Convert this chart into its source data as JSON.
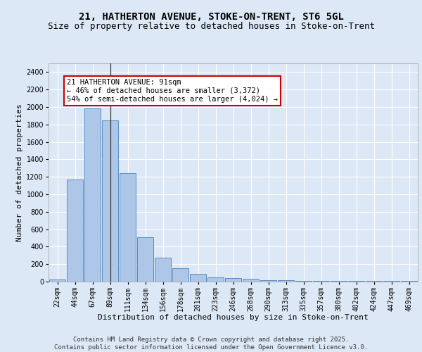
{
  "title_line1": "21, HATHERTON AVENUE, STOKE-ON-TRENT, ST6 5GL",
  "title_line2": "Size of property relative to detached houses in Stoke-on-Trent",
  "xlabel": "Distribution of detached houses by size in Stoke-on-Trent",
  "ylabel": "Number of detached properties",
  "categories": [
    "22sqm",
    "44sqm",
    "67sqm",
    "89sqm",
    "111sqm",
    "134sqm",
    "156sqm",
    "178sqm",
    "201sqm",
    "223sqm",
    "246sqm",
    "268sqm",
    "290sqm",
    "313sqm",
    "335sqm",
    "357sqm",
    "380sqm",
    "402sqm",
    "424sqm",
    "447sqm",
    "469sqm"
  ],
  "values": [
    25,
    1170,
    1980,
    1850,
    1240,
    510,
    275,
    155,
    90,
    50,
    42,
    35,
    20,
    20,
    5,
    5,
    5,
    5,
    5,
    5,
    5
  ],
  "bar_color": "#aec6e8",
  "bar_edge_color": "#5a8fc2",
  "highlight_bar_index": 3,
  "highlight_line_color": "#333333",
  "annotation_text": "21 HATHERTON AVENUE: 91sqm\n← 46% of detached houses are smaller (3,372)\n54% of semi-detached houses are larger (4,024) →",
  "annotation_box_color": "#ffffff",
  "annotation_box_edge_color": "#cc0000",
  "ylim": [
    0,
    2500
  ],
  "yticks": [
    0,
    200,
    400,
    600,
    800,
    1000,
    1200,
    1400,
    1600,
    1800,
    2000,
    2200,
    2400
  ],
  "background_color": "#dce8f5",
  "plot_background_color": "#dce8f5",
  "grid_color": "#ffffff",
  "footer_text": "Contains HM Land Registry data © Crown copyright and database right 2025.\nContains public sector information licensed under the Open Government Licence v3.0.",
  "title_fontsize": 10,
  "subtitle_fontsize": 9,
  "axis_label_fontsize": 8,
  "tick_fontsize": 7,
  "annotation_fontsize": 7.5,
  "footer_fontsize": 6.5
}
